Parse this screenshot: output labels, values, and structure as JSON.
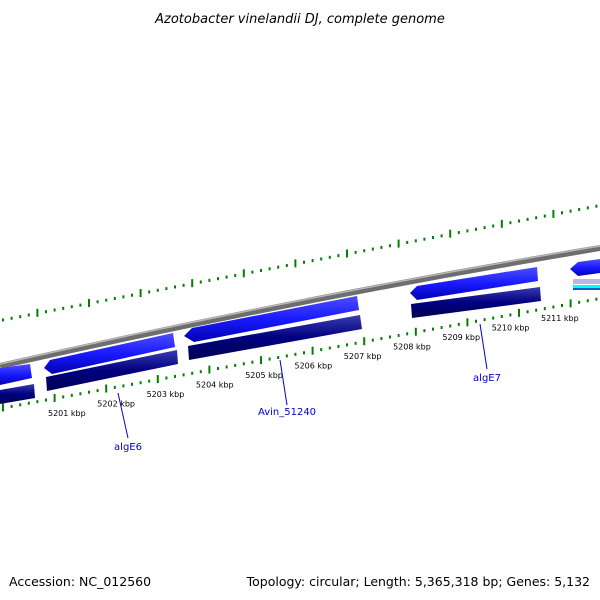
{
  "title": "Azotobacter vinelandii DJ, complete genome",
  "footer": {
    "accession": "Accession: NC_012560",
    "summary": "Topology: circular; Length: 5,365,318 bp; Genes: 5,132"
  },
  "colors": {
    "tick_green": "#008000",
    "backbone_gray": "#808080",
    "gene_forward": "#1a1aff",
    "gene_reverse": "#000080",
    "accent_cyan": "#00ffff",
    "label_blue": "#0000cc"
  },
  "kbp_ticks": [
    "5201 kbp",
    "5202 kbp",
    "5203 kbp",
    "5204 kbp",
    "5205 kbp",
    "5206 kbp",
    "5207 kbp",
    "5208 kbp",
    "5209 kbp",
    "5210 kbp",
    "5211 kbp"
  ],
  "gene_labels": [
    {
      "name": "algE6"
    },
    {
      "name": "Avin_51240"
    },
    {
      "name": "algE7"
    }
  ]
}
